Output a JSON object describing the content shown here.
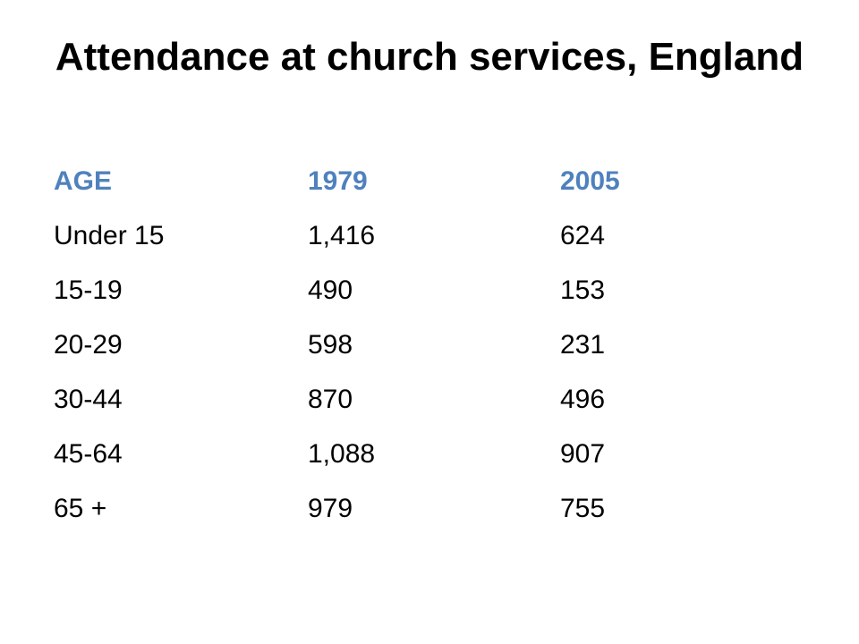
{
  "slide": {
    "title": "Attendance at church services, England"
  },
  "table": {
    "headers": [
      "AGE",
      "1979",
      "2005"
    ],
    "rows": [
      [
        "Under 15",
        "1,416",
        "624"
      ],
      [
        "15-19",
        "490",
        "153"
      ],
      [
        "20-29",
        "598",
        "231"
      ],
      [
        "30-44",
        "870",
        "496"
      ],
      [
        "45-64",
        "1,088",
        "907"
      ],
      [
        "65 +",
        "979",
        "755"
      ]
    ]
  },
  "colors": {
    "header_text": "#4f81bd",
    "body_text": "#000000",
    "background": "#ffffff"
  }
}
